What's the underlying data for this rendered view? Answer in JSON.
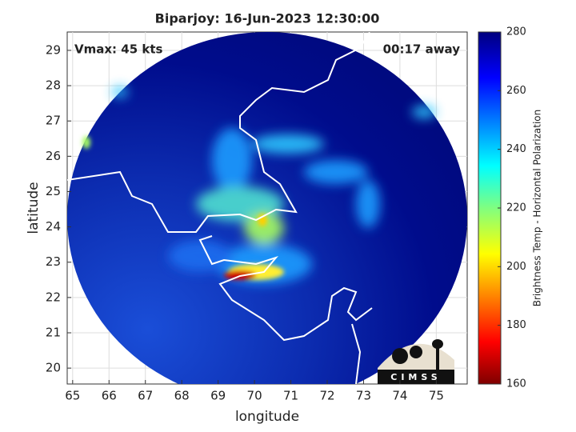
{
  "chart_data": {
    "type": "image",
    "title": "Biparjoy: 16-Jun-2023 12:30:00",
    "annotations": [
      "Vmax: 45 kts",
      "00:17 away"
    ],
    "xlabel": "longitude",
    "ylabel": "latitude",
    "xlim": [
      64.85,
      75.85
    ],
    "ylim": [
      19.55,
      29.52
    ],
    "xticks": [
      65,
      66,
      67,
      68,
      69,
      70,
      71,
      72,
      73,
      74,
      75
    ],
    "yticks": [
      20,
      21,
      22,
      23,
      24,
      25,
      26,
      27,
      28,
      29
    ],
    "grid": true,
    "colorbar": {
      "label": "Brightness Temp - Horizontal Polarization",
      "lim": [
        160,
        280
      ],
      "ticks": [
        160,
        180,
        200,
        220,
        240,
        260,
        280
      ],
      "colormap": "jet"
    },
    "logo": "CIMSS"
  }
}
